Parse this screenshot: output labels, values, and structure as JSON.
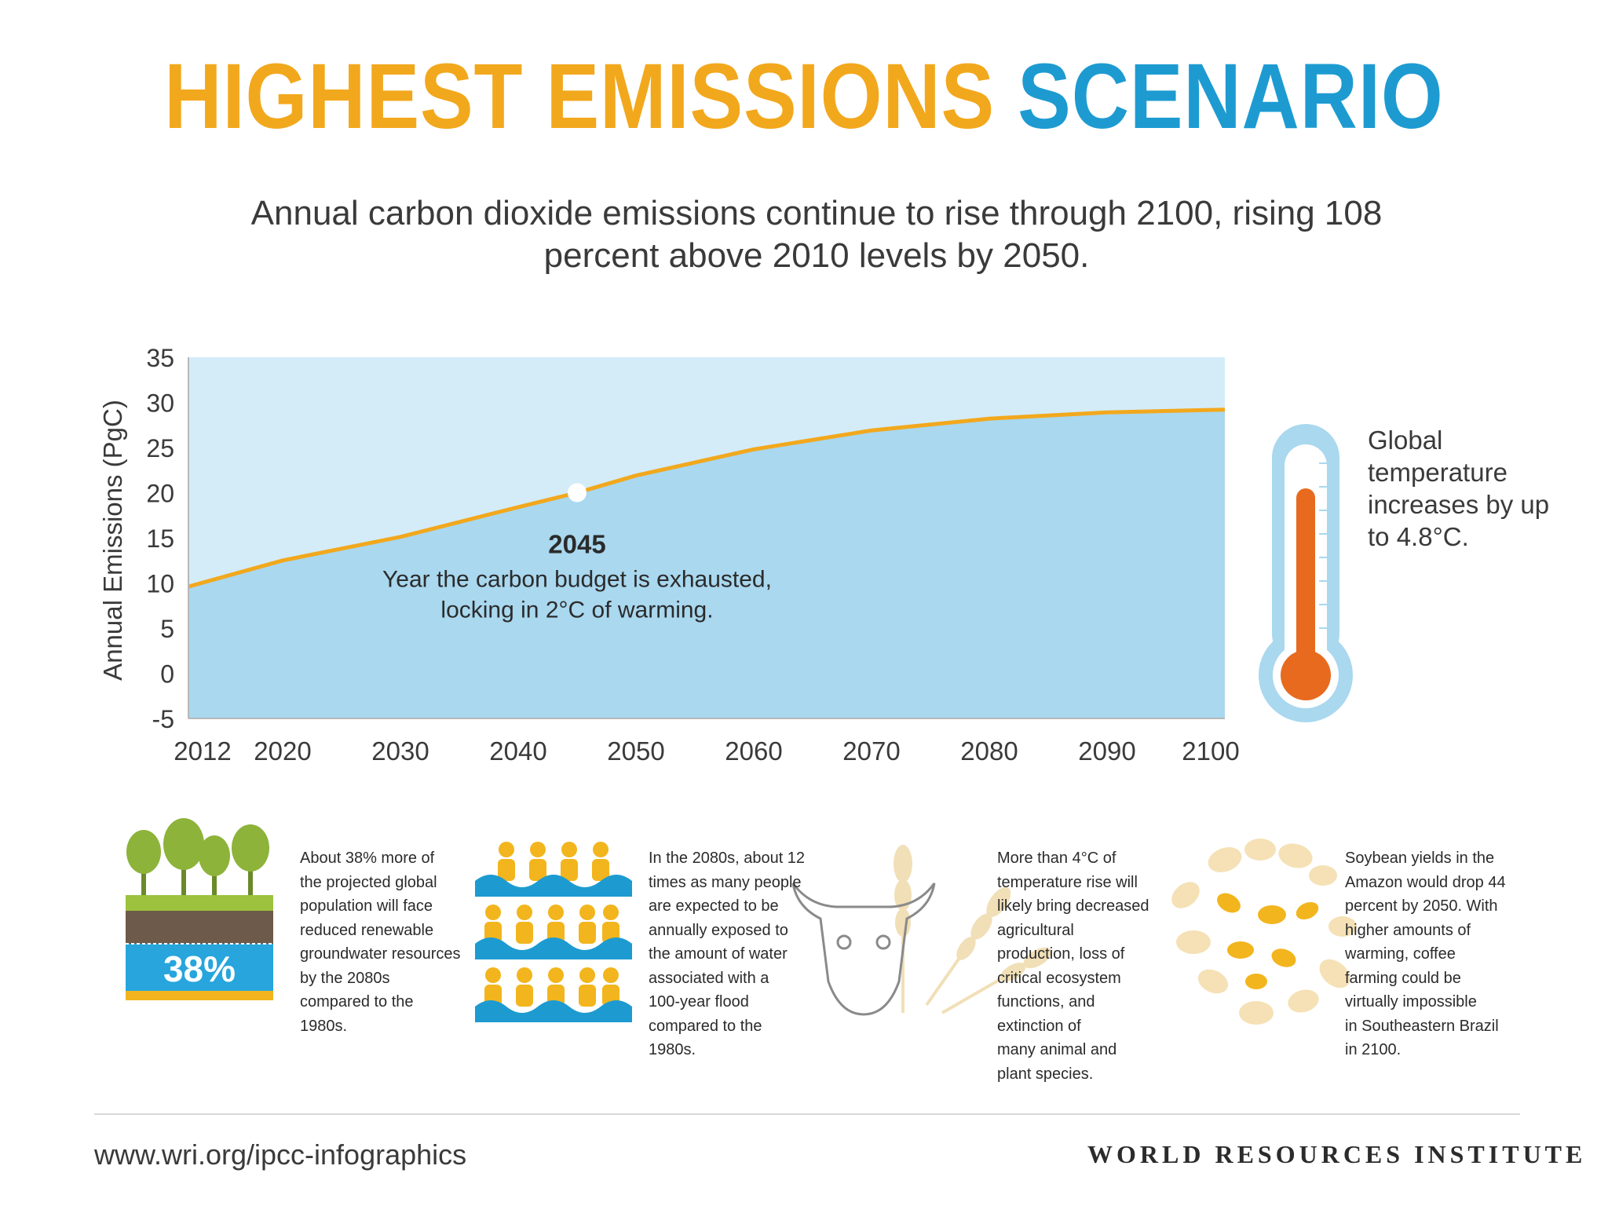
{
  "header": {
    "title_part1": "HIGHEST EMISSIONS",
    "title_part2": "SCENARIO",
    "subtitle": "Annual carbon dioxide emissions continue to rise through 2100, rising 108 percent above 2010 levels by 2050."
  },
  "colors": {
    "title_orange": "#f2a81d",
    "title_blue": "#1d9bd1",
    "line": "#f2a81d",
    "area": "#a9d8ef",
    "background_fill": "#d4ecf8",
    "thermometer_red": "#e86a1e",
    "thermometer_outer": "#a9d8ef"
  },
  "chart_data": {
    "type": "area",
    "title": "",
    "xlabel": "",
    "ylabel": "Annual Emissions (PgC)",
    "x": [
      2012,
      2020,
      2030,
      2040,
      2045,
      2050,
      2060,
      2070,
      2080,
      2090,
      2100
    ],
    "series": [
      {
        "values": [
          9.6,
          12.5,
          15.1,
          18.4,
          20.0,
          21.9,
          24.8,
          26.9,
          28.2,
          28.9,
          29.2
        ]
      }
    ],
    "xticks": [
      "2012",
      "2020",
      "2030",
      "2040",
      "2050",
      "2060",
      "2070",
      "2080",
      "2090",
      "2100"
    ],
    "yticks": [
      "-5",
      "0",
      "5",
      "10",
      "15",
      "20",
      "25",
      "30",
      "35"
    ],
    "xlim": [
      2012,
      2100
    ],
    "ylim": [
      -5,
      35
    ],
    "grid": false,
    "annotation": {
      "x": 2045,
      "y": 20,
      "heading": "2045",
      "line1": "Year the carbon budget is exhausted,",
      "line2": "locking in 2°C of warming."
    }
  },
  "thermometer": {
    "icon": "thermometer-icon",
    "level": 0.85,
    "text": "Global temperature increases by up to 4.8°C."
  },
  "impacts": [
    {
      "icon": "groundwater-icon",
      "badge": "38%",
      "lines": [
        "About 38% more of",
        "the projected global",
        "population will face",
        "reduced renewable",
        "groundwater resources",
        "by the 2080s",
        "compared to the",
        "1980s."
      ]
    },
    {
      "icon": "flood-people-icon",
      "lines": [
        "In the 2080s, about 12",
        "times as many people",
        "are expected to be",
        "annually exposed to",
        "the amount of water",
        "associated with a",
        "100-year flood",
        "compared to the",
        "1980s."
      ]
    },
    {
      "icon": "cow-skull-wheat-icon",
      "lines": [
        "More than 4°C of",
        "temperature rise will",
        "likely bring decreased",
        "agricultural",
        "production, loss of",
        "critical ecosystem",
        "functions, and",
        "extinction of",
        "many animal and",
        "plant species."
      ]
    },
    {
      "icon": "beans-icon",
      "lines": [
        "Soybean yields in the",
        "Amazon would drop 44",
        "percent by 2050. With",
        "higher amounts of",
        "warming, coffee",
        "farming could be",
        "virtually impossible",
        "in Southeastern Brazil",
        "in 2100."
      ]
    }
  ],
  "footer": {
    "url": "www.wri.org/ipcc-infographics",
    "org_name": "WORLD RESOURCES INSTITUTE",
    "logo_icon": "wri-logo-icon"
  }
}
